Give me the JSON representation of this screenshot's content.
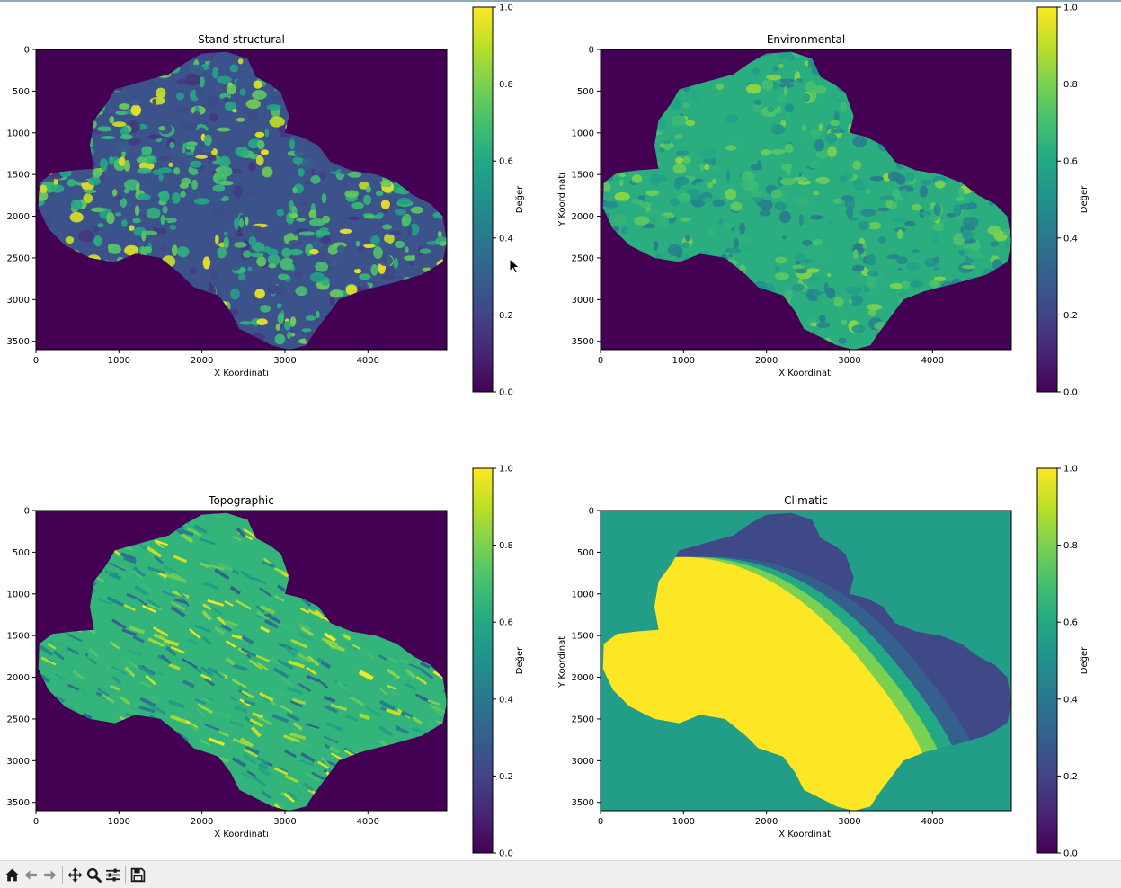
{
  "chart_data": [
    {
      "type": "heatmap",
      "title": "Stand structural",
      "xlabel": "X Koordinatı",
      "ylabel": "",
      "xlim": [
        0,
        4950
      ],
      "ylim": [
        3600,
        0
      ],
      "xticks": [
        0,
        1000,
        2000,
        3000,
        4000
      ],
      "yticks": [
        0,
        500,
        1000,
        1500,
        2000,
        2500,
        3000,
        3500
      ],
      "colorbar": {
        "label": "Değer",
        "range": [
          0,
          1
        ],
        "ticks": [
          0.0,
          0.2,
          0.4,
          0.6,
          0.8,
          1.0
        ],
        "colormap": "viridis"
      },
      "background_value": 0.0,
      "value_range_inside": [
        0.0,
        1.0
      ]
    },
    {
      "type": "heatmap",
      "title": "Environmental",
      "xlabel": "X Koordinatı",
      "ylabel": "Y Koordinatı",
      "xlim": [
        0,
        4950
      ],
      "ylim": [
        3600,
        0
      ],
      "xticks": [
        0,
        1000,
        2000,
        3000,
        4000
      ],
      "yticks": [
        0,
        500,
        1000,
        1500,
        2000,
        2500,
        3000,
        3500
      ],
      "colorbar": {
        "label": "Değer",
        "range": [
          0,
          1
        ],
        "ticks": [
          0.0,
          0.2,
          0.4,
          0.6,
          0.8,
          1.0
        ],
        "colormap": "viridis"
      },
      "background_value": 0.0,
      "value_range_inside": [
        0.4,
        0.85
      ]
    },
    {
      "type": "heatmap",
      "title": "Topographic",
      "xlabel": "X Koordinatı",
      "ylabel": "",
      "xlim": [
        0,
        4950
      ],
      "ylim": [
        3600,
        0
      ],
      "xticks": [
        0,
        1000,
        2000,
        3000,
        4000
      ],
      "yticks": [
        0,
        500,
        1000,
        1500,
        2000,
        2500,
        3000,
        3500
      ],
      "colorbar": {
        "label": "Değer",
        "range": [
          0,
          1
        ],
        "ticks": [
          0.0,
          0.2,
          0.4,
          0.6,
          0.8,
          1.0
        ],
        "colormap": "viridis"
      },
      "background_value": 0.0,
      "value_range_inside": [
        0.3,
        1.0
      ]
    },
    {
      "type": "heatmap",
      "title": "Climatic",
      "xlabel": "X Koordinatı",
      "ylabel": "Y Koordinatı",
      "xlim": [
        0,
        4950
      ],
      "ylim": [
        3600,
        0
      ],
      "xticks": [
        0,
        1000,
        2000,
        3000,
        4000
      ],
      "yticks": [
        0,
        500,
        1000,
        1500,
        2000,
        2500,
        3000,
        3500
      ],
      "colorbar": {
        "label": "Değer",
        "range": [
          0,
          1
        ],
        "ticks": [
          0.0,
          0.2,
          0.4,
          0.6,
          0.8,
          1.0
        ],
        "colormap": "viridis"
      },
      "background_value": 0.55,
      "zone_values": [
        1.0,
        0.8,
        0.6,
        0.3,
        0.22
      ]
    }
  ],
  "toolbar": {
    "buttons": [
      {
        "name": "home-button",
        "icon": "home-icon"
      },
      {
        "name": "back-button",
        "icon": "arrow-left-icon"
      },
      {
        "name": "forward-button",
        "icon": "arrow-right-icon"
      },
      {
        "name": "pan-button",
        "icon": "move-icon"
      },
      {
        "name": "zoom-button",
        "icon": "magnifier-icon"
      },
      {
        "name": "configure-subplots-button",
        "icon": "sliders-icon"
      },
      {
        "name": "save-button",
        "icon": "floppy-icon"
      }
    ]
  },
  "colors": {
    "viridis_low": "#440154",
    "viridis_mid": "#21918c",
    "viridis_high": "#fde725"
  }
}
